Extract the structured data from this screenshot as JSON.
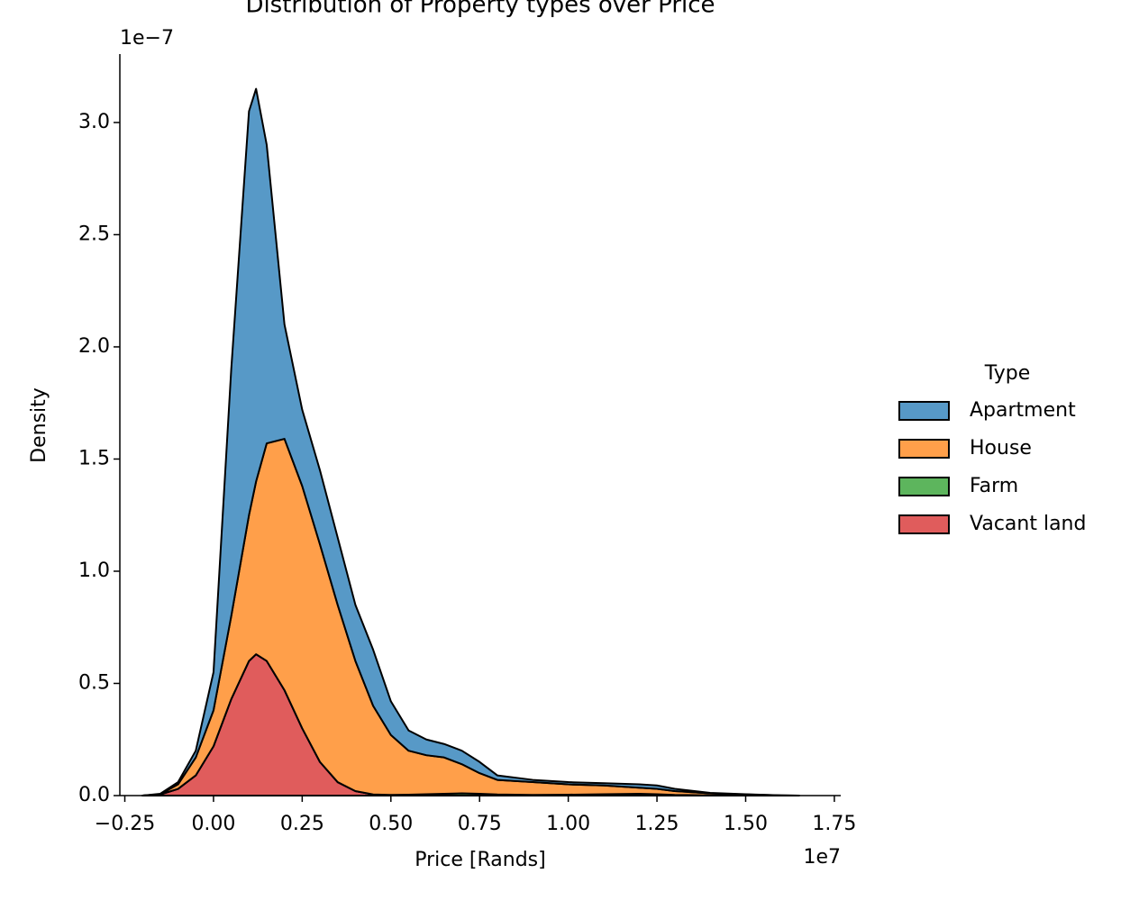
{
  "chart_data": {
    "type": "stacked-area",
    "title": "Distribution of Property types over Price",
    "x_label": "Price [Rands]",
    "y_label": "Density",
    "x_offset": "1e7",
    "y_offset": "1e−7",
    "legend_title": "Type",
    "legend": "right",
    "x": [
      -0.2,
      -0.15,
      -0.1,
      -0.05,
      0,
      0.05,
      0.1,
      0.12,
      0.15,
      0.2,
      0.25,
      0.3,
      0.35,
      0.4,
      0.45,
      0.5,
      0.55,
      0.6,
      0.65,
      0.7,
      0.75,
      0.8,
      0.9,
      1.0,
      1.1,
      1.2,
      1.25,
      1.3,
      1.4,
      1.5,
      1.6,
      1.65
    ],
    "series": [
      {
        "name": "Apartment",
        "color": "#5799c7",
        "values": [
          0,
          0.002,
          0.01,
          0.03,
          0.17,
          1.1,
          1.8,
          1.75,
          1.33,
          0.51,
          0.34,
          0.33,
          0.3,
          0.25,
          0.25,
          0.15,
          0.09,
          0.07,
          0.06,
          0.06,
          0.05,
          0.02,
          0.01,
          0.01,
          0.01,
          0.015,
          0.015,
          0.01,
          0.002,
          0.001,
          0,
          0
        ]
      },
      {
        "name": "House",
        "color": "#ff9f4a",
        "values": [
          0,
          0.001,
          0.02,
          0.08,
          0.16,
          0.37,
          0.65,
          0.77,
          0.97,
          1.12,
          1.08,
          0.97,
          0.79,
          0.58,
          0.395,
          0.267,
          0.196,
          0.174,
          0.162,
          0.13,
          0.092,
          0.065,
          0.057,
          0.046,
          0.039,
          0.027,
          0.024,
          0.017,
          0.009,
          0.005,
          0.001,
          0
        ]
      },
      {
        "name": "Farm",
        "color": "#5db55d",
        "values": [
          0,
          0,
          0,
          0,
          0,
          0,
          0,
          0,
          0,
          0,
          0,
          0,
          0,
          0,
          0,
          0.002,
          0.004,
          0.006,
          0.008,
          0.01,
          0.008,
          0.005,
          0.003,
          0.004,
          0.006,
          0.008,
          0.006,
          0.003,
          0.001,
          0,
          0,
          0
        ]
      },
      {
        "name": "Vacant land",
        "color": "#e05c5c",
        "values": [
          0,
          0.005,
          0.03,
          0.09,
          0.22,
          0.43,
          0.6,
          0.63,
          0.6,
          0.47,
          0.3,
          0.15,
          0.06,
          0.02,
          0.005,
          0.001,
          0,
          0,
          0,
          0,
          0,
          0,
          0,
          0,
          0,
          0,
          0,
          0,
          0,
          0,
          0,
          0
        ]
      }
    ],
    "xlim": [
      -0.264,
      1.768
    ],
    "ylim": [
      0,
      3.305
    ],
    "xticks": [
      {
        "value": -0.25,
        "label": "−0.25"
      },
      {
        "value": 0,
        "label": "0.00"
      },
      0.25,
      {
        "value": 0.5,
        "label": "0.50"
      },
      0.75,
      {
        "value": 1,
        "label": "1.00"
      },
      1.25,
      {
        "value": 1.5,
        "label": "1.50"
      },
      1.75
    ],
    "yticks": [
      {
        "value": 0,
        "label": "0.0"
      },
      0.5,
      {
        "value": 1,
        "label": "1.0"
      },
      1.5,
      {
        "value": 2,
        "label": "2.0"
      },
      2.5,
      {
        "value": 3,
        "label": "3.0"
      }
    ]
  }
}
